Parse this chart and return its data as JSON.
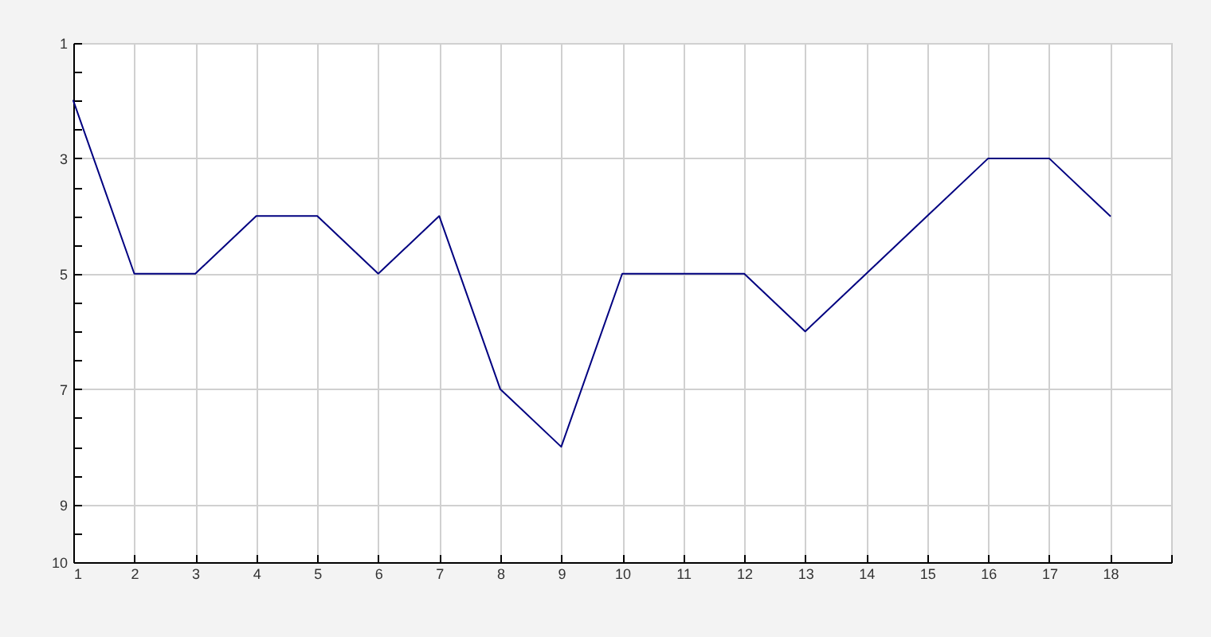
{
  "chart_data": {
    "type": "line",
    "x": [
      1,
      2,
      3,
      4,
      5,
      6,
      7,
      8,
      9,
      10,
      11,
      12,
      13,
      14,
      15,
      16,
      17,
      18
    ],
    "series": [
      {
        "color": "#000080",
        "values": [
          2,
          5,
          5,
          4,
          4,
          5,
          4,
          7,
          8,
          5,
          5,
          5,
          6,
          5,
          4,
          3,
          3,
          4
        ]
      }
    ],
    "xlim": [
      1,
      19
    ],
    "xticks": [
      1,
      2,
      3,
      4,
      5,
      6,
      7,
      8,
      9,
      10,
      11,
      12,
      13,
      14,
      15,
      16,
      17,
      18,
      {
        "value": 19,
        "label": null
      }
    ],
    "ylim": [
      10,
      1
    ],
    "yticks": [
      1,
      {
        "value": 1.5,
        "label": null
      },
      {
        "value": 2,
        "label": null
      },
      {
        "value": 2.5,
        "label": null
      },
      3,
      {
        "value": 3.5,
        "label": null
      },
      {
        "value": 4,
        "label": null
      },
      {
        "value": 4.5,
        "label": null
      },
      5,
      {
        "value": 5.5,
        "label": null
      },
      {
        "value": 6,
        "label": null
      },
      {
        "value": 6.5,
        "label": null
      },
      7,
      {
        "value": 7.5,
        "label": null
      },
      {
        "value": 8,
        "label": null
      },
      {
        "value": 8.5,
        "label": null
      },
      9,
      {
        "value": 9.5,
        "label": null
      },
      10
    ],
    "grid": true,
    "legend": false,
    "marker": "none",
    "line_style": "solid"
  }
}
